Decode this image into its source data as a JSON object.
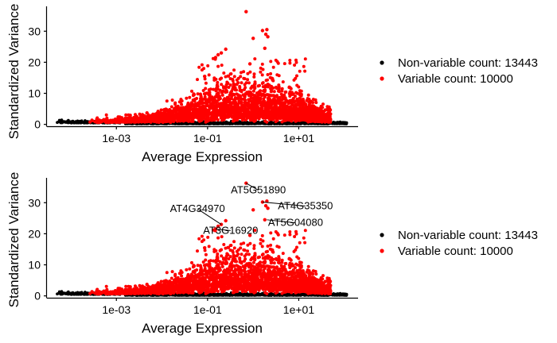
{
  "colors": {
    "non_variable": "#000000",
    "variable": "#ff0000",
    "axis": "#000000",
    "background": "#ffffff"
  },
  "chart_data": [
    {
      "type": "scatter",
      "title": "",
      "xlabel": "Average Expression",
      "ylabel": "Standardized Variance",
      "x_scale": "log10",
      "xlim": [
        3e-05,
        200
      ],
      "ylim": [
        -0.6,
        38
      ],
      "xticks": [
        {
          "value": 0.001,
          "label": "1e-03"
        },
        {
          "value": 0.1,
          "label": "1e-01"
        },
        {
          "value": 10,
          "label": "1e+01"
        }
      ],
      "yticks": [
        {
          "value": 0,
          "label": "0"
        },
        {
          "value": 10,
          "label": "10"
        },
        {
          "value": 20,
          "label": "20"
        },
        {
          "value": 30,
          "label": "30"
        }
      ],
      "grid": false,
      "legend_position": "right",
      "series": [
        {
          "name": "Non-variable count: 13443",
          "color": "#000000"
        },
        {
          "name": "Variable count: 10000",
          "color": "#ff0000"
        }
      ],
      "highlight_points": [
        {
          "x": 0.7,
          "y": 36.3
        },
        {
          "x": 1.6,
          "y": 30.2
        },
        {
          "x": 2.0,
          "y": 30.5
        },
        {
          "x": 1.9,
          "y": 29.0
        },
        {
          "x": 2.1,
          "y": 28.2
        },
        {
          "x": 1.8,
          "y": 24.5
        },
        {
          "x": 1.0,
          "y": 27.7
        },
        {
          "x": 0.2,
          "y": 23.0
        },
        {
          "x": 0.17,
          "y": 22.4
        },
        {
          "x": 0.25,
          "y": 24.2
        },
        {
          "x": 0.15,
          "y": 21.5
        },
        {
          "x": 0.85,
          "y": 19.5
        }
      ],
      "annotations": []
    },
    {
      "type": "scatter",
      "title": "",
      "xlabel": "Average Expression",
      "ylabel": "Standardized Variance",
      "x_scale": "log10",
      "xlim": [
        3e-05,
        200
      ],
      "ylim": [
        -0.6,
        38
      ],
      "xticks": [
        {
          "value": 0.001,
          "label": "1e-03"
        },
        {
          "value": 0.1,
          "label": "1e-01"
        },
        {
          "value": 10,
          "label": "1e+01"
        }
      ],
      "yticks": [
        {
          "value": 0,
          "label": "0"
        },
        {
          "value": 10,
          "label": "10"
        },
        {
          "value": 20,
          "label": "20"
        },
        {
          "value": 30,
          "label": "30"
        }
      ],
      "grid": false,
      "legend_position": "right",
      "series": [
        {
          "name": "Non-variable count: 13443",
          "color": "#000000"
        },
        {
          "name": "Variable count: 10000",
          "color": "#ff0000"
        }
      ],
      "highlight_points": [
        {
          "x": 0.7,
          "y": 36.3
        },
        {
          "x": 1.6,
          "y": 30.2
        },
        {
          "x": 2.0,
          "y": 30.5
        },
        {
          "x": 1.9,
          "y": 29.0
        },
        {
          "x": 2.1,
          "y": 28.2
        },
        {
          "x": 1.8,
          "y": 24.5
        },
        {
          "x": 1.0,
          "y": 27.7
        },
        {
          "x": 0.2,
          "y": 23.0
        },
        {
          "x": 0.17,
          "y": 22.4
        },
        {
          "x": 0.25,
          "y": 24.2
        },
        {
          "x": 0.15,
          "y": 21.5
        },
        {
          "x": 0.85,
          "y": 19.5
        }
      ],
      "annotations": [
        {
          "label": "AT5G51890",
          "point_x": 0.7,
          "point_y": 36.3,
          "label_x": 1.3,
          "label_y": 33.0
        },
        {
          "label": "AT4G34970",
          "point_x": 0.2,
          "point_y": 23.0,
          "label_x": 0.06,
          "label_y": 27.0
        },
        {
          "label": "AT4G35350",
          "point_x": 1.6,
          "point_y": 30.2,
          "label_x": 14.0,
          "label_y": 27.9
        },
        {
          "label": "AT5G04080",
          "point_x": 2.0,
          "point_y": 24.5,
          "label_x": 8.5,
          "label_y": 22.5
        },
        {
          "label": "AT3G16920",
          "point_x": 0.15,
          "point_y": 21.5,
          "label_x": 0.32,
          "label_y": 20.0
        }
      ]
    }
  ]
}
